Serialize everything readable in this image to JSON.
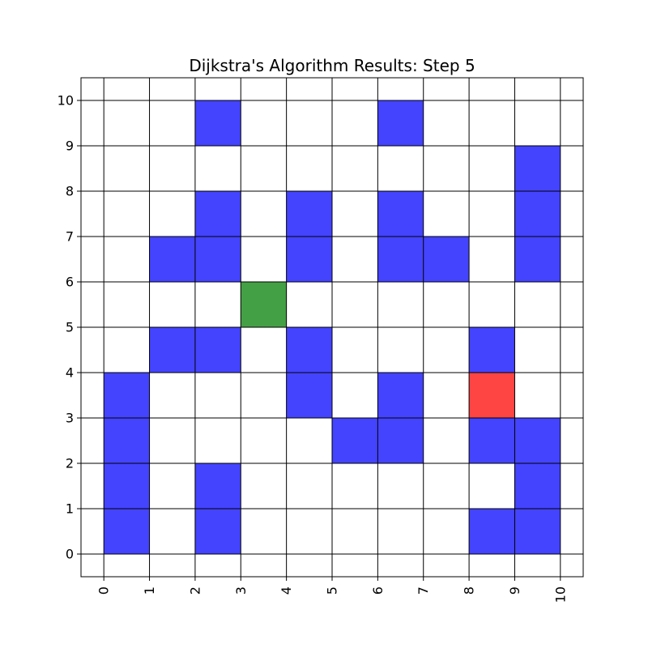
{
  "chart_data": {
    "type": "heatmap",
    "title": "Dijkstra's Algorithm Results: Step 5",
    "xlabel": "",
    "ylabel": "",
    "xlim": [
      -0.5,
      10.5
    ],
    "ylim": [
      -0.5,
      10.5
    ],
    "x_ticks": [
      "0",
      "1",
      "2",
      "3",
      "4",
      "5",
      "6",
      "7",
      "8",
      "9",
      "10"
    ],
    "y_ticks": [
      "0",
      "1",
      "2",
      "3",
      "4",
      "5",
      "6",
      "7",
      "8",
      "9",
      "10"
    ],
    "grid": true,
    "colors": {
      "obstacle": "#4444ff",
      "start": "#44a044",
      "goal": "#ff4444",
      "grid_line": "#000000"
    },
    "cells": [
      {
        "x": 0,
        "y": 0,
        "state": "obstacle"
      },
      {
        "x": 0,
        "y": 1,
        "state": "obstacle"
      },
      {
        "x": 0,
        "y": 2,
        "state": "obstacle"
      },
      {
        "x": 0,
        "y": 3,
        "state": "obstacle"
      },
      {
        "x": 1,
        "y": 4,
        "state": "obstacle"
      },
      {
        "x": 1,
        "y": 6,
        "state": "obstacle"
      },
      {
        "x": 2,
        "y": 0,
        "state": "obstacle"
      },
      {
        "x": 2,
        "y": 1,
        "state": "obstacle"
      },
      {
        "x": 2,
        "y": 4,
        "state": "obstacle"
      },
      {
        "x": 2,
        "y": 6,
        "state": "obstacle"
      },
      {
        "x": 2,
        "y": 7,
        "state": "obstacle"
      },
      {
        "x": 2,
        "y": 9,
        "state": "obstacle"
      },
      {
        "x": 3,
        "y": 5,
        "state": "start"
      },
      {
        "x": 4,
        "y": 3,
        "state": "obstacle"
      },
      {
        "x": 4,
        "y": 4,
        "state": "obstacle"
      },
      {
        "x": 4,
        "y": 6,
        "state": "obstacle"
      },
      {
        "x": 4,
        "y": 7,
        "state": "obstacle"
      },
      {
        "x": 5,
        "y": 2,
        "state": "obstacle"
      },
      {
        "x": 6,
        "y": 2,
        "state": "obstacle"
      },
      {
        "x": 6,
        "y": 3,
        "state": "obstacle"
      },
      {
        "x": 6,
        "y": 6,
        "state": "obstacle"
      },
      {
        "x": 6,
        "y": 7,
        "state": "obstacle"
      },
      {
        "x": 6,
        "y": 9,
        "state": "obstacle"
      },
      {
        "x": 7,
        "y": 6,
        "state": "obstacle"
      },
      {
        "x": 8,
        "y": 0,
        "state": "obstacle"
      },
      {
        "x": 8,
        "y": 2,
        "state": "obstacle"
      },
      {
        "x": 8,
        "y": 3,
        "state": "goal"
      },
      {
        "x": 8,
        "y": 4,
        "state": "obstacle"
      },
      {
        "x": 9,
        "y": 0,
        "state": "obstacle"
      },
      {
        "x": 9,
        "y": 1,
        "state": "obstacle"
      },
      {
        "x": 9,
        "y": 2,
        "state": "obstacle"
      },
      {
        "x": 9,
        "y": 6,
        "state": "obstacle"
      },
      {
        "x": 9,
        "y": 7,
        "state": "obstacle"
      },
      {
        "x": 9,
        "y": 8,
        "state": "obstacle"
      }
    ]
  }
}
